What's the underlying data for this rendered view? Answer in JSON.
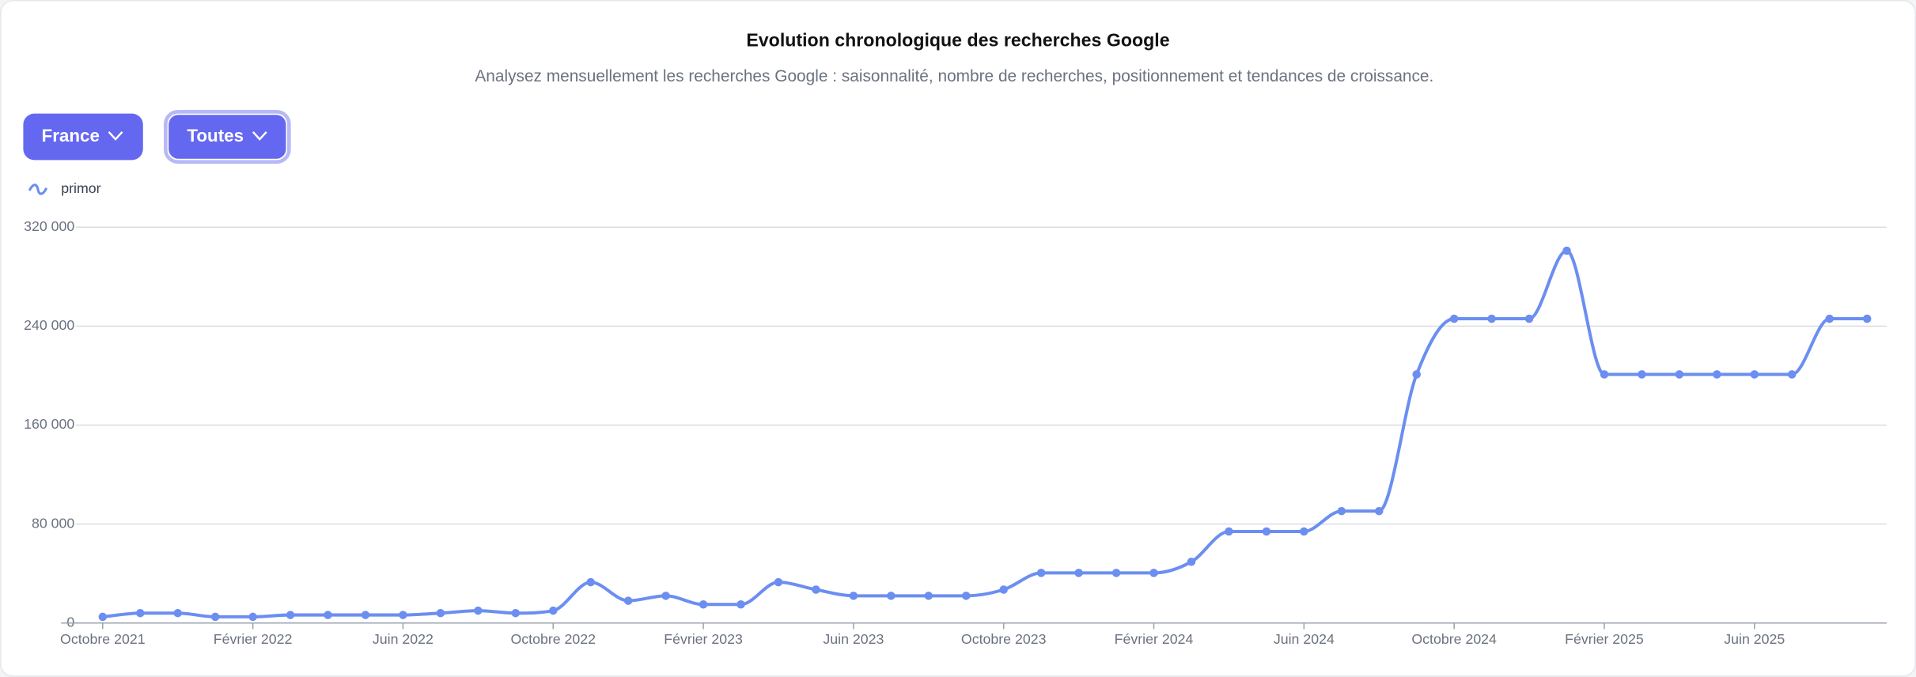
{
  "controls": [
    "France",
    "Toutes"
  ],
  "chart_data": {
    "type": "line",
    "title": "Evolution chronologique des recherches Google",
    "subtitle": "Analysez mensuellement les recherches Google : saisonnalité, nombre de recherches, positionnement et tendances de croissance.",
    "categories": [
      "Octobre 2021",
      null,
      null,
      null,
      "Février 2022",
      null,
      null,
      null,
      "Juin 2022",
      null,
      null,
      null,
      "Octobre 2022",
      null,
      null,
      null,
      "Février 2023",
      null,
      null,
      null,
      "Juin 2023",
      null,
      null,
      null,
      "Octobre 2023",
      null,
      null,
      null,
      "Février 2024",
      null,
      null,
      null,
      "Juin 2024",
      null,
      null,
      null,
      "Octobre 2024",
      null,
      null,
      null,
      "Février 2025",
      null,
      null,
      null,
      "Juin 2025",
      null,
      null,
      null
    ],
    "series": [
      {
        "name": "primor",
        "color": "#6b8ef0",
        "values": [
          5000,
          8000,
          8000,
          5000,
          5000,
          6500,
          6500,
          6500,
          6500,
          8000,
          10000,
          8000,
          10000,
          33000,
          18000,
          22000,
          15000,
          15000,
          33000,
          27000,
          22000,
          22000,
          22000,
          22000,
          27000,
          40500,
          40500,
          40500,
          40500,
          49500,
          74000,
          74000,
          74000,
          90500,
          90500,
          201000,
          246000,
          246000,
          246000,
          301000,
          201000,
          201000,
          201000,
          201000,
          201000,
          201000,
          246000,
          246000
        ]
      }
    ],
    "ylim": [
      0,
      320000
    ],
    "yticks": [
      0,
      {
        "value": 80000,
        "label": "80 000"
      },
      {
        "value": 160000,
        "label": "160 000"
      },
      {
        "value": 240000,
        "label": "240 000"
      },
      {
        "value": 320000,
        "label": "320 000"
      }
    ],
    "grid": true,
    "legend": "top-left"
  }
}
